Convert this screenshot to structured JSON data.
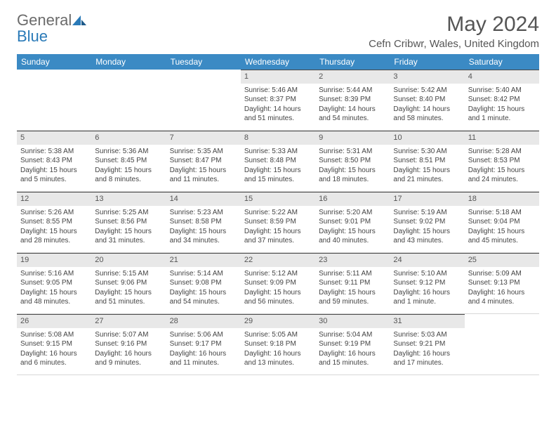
{
  "logo": {
    "gray": "General",
    "blue": "Blue"
  },
  "title": "May 2024",
  "location": "Cefn Cribwr, Wales, United Kingdom",
  "colors": {
    "header_bg": "#3b8ac4",
    "header_text": "#ffffff",
    "daynum_bg": "#e8e8e8",
    "top_border": "#4a4a4a",
    "logo_gray": "#6b6b6b",
    "logo_blue": "#2a7ab8"
  },
  "weekdays": [
    "Sunday",
    "Monday",
    "Tuesday",
    "Wednesday",
    "Thursday",
    "Friday",
    "Saturday"
  ],
  "weeks": [
    [
      {
        "n": "",
        "sr": "",
        "ss": "",
        "dl": ""
      },
      {
        "n": "",
        "sr": "",
        "ss": "",
        "dl": ""
      },
      {
        "n": "",
        "sr": "",
        "ss": "",
        "dl": ""
      },
      {
        "n": "1",
        "sr": "Sunrise: 5:46 AM",
        "ss": "Sunset: 8:37 PM",
        "dl": "Daylight: 14 hours and 51 minutes."
      },
      {
        "n": "2",
        "sr": "Sunrise: 5:44 AM",
        "ss": "Sunset: 8:39 PM",
        "dl": "Daylight: 14 hours and 54 minutes."
      },
      {
        "n": "3",
        "sr": "Sunrise: 5:42 AM",
        "ss": "Sunset: 8:40 PM",
        "dl": "Daylight: 14 hours and 58 minutes."
      },
      {
        "n": "4",
        "sr": "Sunrise: 5:40 AM",
        "ss": "Sunset: 8:42 PM",
        "dl": "Daylight: 15 hours and 1 minute."
      }
    ],
    [
      {
        "n": "5",
        "sr": "Sunrise: 5:38 AM",
        "ss": "Sunset: 8:43 PM",
        "dl": "Daylight: 15 hours and 5 minutes."
      },
      {
        "n": "6",
        "sr": "Sunrise: 5:36 AM",
        "ss": "Sunset: 8:45 PM",
        "dl": "Daylight: 15 hours and 8 minutes."
      },
      {
        "n": "7",
        "sr": "Sunrise: 5:35 AM",
        "ss": "Sunset: 8:47 PM",
        "dl": "Daylight: 15 hours and 11 minutes."
      },
      {
        "n": "8",
        "sr": "Sunrise: 5:33 AM",
        "ss": "Sunset: 8:48 PM",
        "dl": "Daylight: 15 hours and 15 minutes."
      },
      {
        "n": "9",
        "sr": "Sunrise: 5:31 AM",
        "ss": "Sunset: 8:50 PM",
        "dl": "Daylight: 15 hours and 18 minutes."
      },
      {
        "n": "10",
        "sr": "Sunrise: 5:30 AM",
        "ss": "Sunset: 8:51 PM",
        "dl": "Daylight: 15 hours and 21 minutes."
      },
      {
        "n": "11",
        "sr": "Sunrise: 5:28 AM",
        "ss": "Sunset: 8:53 PM",
        "dl": "Daylight: 15 hours and 24 minutes."
      }
    ],
    [
      {
        "n": "12",
        "sr": "Sunrise: 5:26 AM",
        "ss": "Sunset: 8:55 PM",
        "dl": "Daylight: 15 hours and 28 minutes."
      },
      {
        "n": "13",
        "sr": "Sunrise: 5:25 AM",
        "ss": "Sunset: 8:56 PM",
        "dl": "Daylight: 15 hours and 31 minutes."
      },
      {
        "n": "14",
        "sr": "Sunrise: 5:23 AM",
        "ss": "Sunset: 8:58 PM",
        "dl": "Daylight: 15 hours and 34 minutes."
      },
      {
        "n": "15",
        "sr": "Sunrise: 5:22 AM",
        "ss": "Sunset: 8:59 PM",
        "dl": "Daylight: 15 hours and 37 minutes."
      },
      {
        "n": "16",
        "sr": "Sunrise: 5:20 AM",
        "ss": "Sunset: 9:01 PM",
        "dl": "Daylight: 15 hours and 40 minutes."
      },
      {
        "n": "17",
        "sr": "Sunrise: 5:19 AM",
        "ss": "Sunset: 9:02 PM",
        "dl": "Daylight: 15 hours and 43 minutes."
      },
      {
        "n": "18",
        "sr": "Sunrise: 5:18 AM",
        "ss": "Sunset: 9:04 PM",
        "dl": "Daylight: 15 hours and 45 minutes."
      }
    ],
    [
      {
        "n": "19",
        "sr": "Sunrise: 5:16 AM",
        "ss": "Sunset: 9:05 PM",
        "dl": "Daylight: 15 hours and 48 minutes."
      },
      {
        "n": "20",
        "sr": "Sunrise: 5:15 AM",
        "ss": "Sunset: 9:06 PM",
        "dl": "Daylight: 15 hours and 51 minutes."
      },
      {
        "n": "21",
        "sr": "Sunrise: 5:14 AM",
        "ss": "Sunset: 9:08 PM",
        "dl": "Daylight: 15 hours and 54 minutes."
      },
      {
        "n": "22",
        "sr": "Sunrise: 5:12 AM",
        "ss": "Sunset: 9:09 PM",
        "dl": "Daylight: 15 hours and 56 minutes."
      },
      {
        "n": "23",
        "sr": "Sunrise: 5:11 AM",
        "ss": "Sunset: 9:11 PM",
        "dl": "Daylight: 15 hours and 59 minutes."
      },
      {
        "n": "24",
        "sr": "Sunrise: 5:10 AM",
        "ss": "Sunset: 9:12 PM",
        "dl": "Daylight: 16 hours and 1 minute."
      },
      {
        "n": "25",
        "sr": "Sunrise: 5:09 AM",
        "ss": "Sunset: 9:13 PM",
        "dl": "Daylight: 16 hours and 4 minutes."
      }
    ],
    [
      {
        "n": "26",
        "sr": "Sunrise: 5:08 AM",
        "ss": "Sunset: 9:15 PM",
        "dl": "Daylight: 16 hours and 6 minutes."
      },
      {
        "n": "27",
        "sr": "Sunrise: 5:07 AM",
        "ss": "Sunset: 9:16 PM",
        "dl": "Daylight: 16 hours and 9 minutes."
      },
      {
        "n": "28",
        "sr": "Sunrise: 5:06 AM",
        "ss": "Sunset: 9:17 PM",
        "dl": "Daylight: 16 hours and 11 minutes."
      },
      {
        "n": "29",
        "sr": "Sunrise: 5:05 AM",
        "ss": "Sunset: 9:18 PM",
        "dl": "Daylight: 16 hours and 13 minutes."
      },
      {
        "n": "30",
        "sr": "Sunrise: 5:04 AM",
        "ss": "Sunset: 9:19 PM",
        "dl": "Daylight: 16 hours and 15 minutes."
      },
      {
        "n": "31",
        "sr": "Sunrise: 5:03 AM",
        "ss": "Sunset: 9:21 PM",
        "dl": "Daylight: 16 hours and 17 minutes."
      },
      {
        "n": "",
        "sr": "",
        "ss": "",
        "dl": ""
      }
    ]
  ]
}
